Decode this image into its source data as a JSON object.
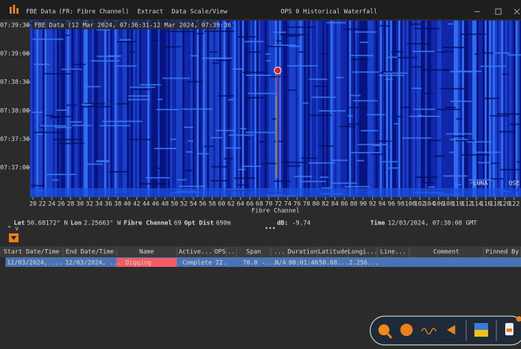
{
  "title_bar": {
    "menu": [
      {
        "label": "FBE Data",
        "hint": "(FR: Fibre Channel)"
      },
      {
        "label": "Extract"
      },
      {
        "label": "Data Scale/View"
      }
    ],
    "window_title": "OPS 0 Historical Waterfall"
  },
  "waterfall": {
    "overlay_label": "FBE Data (12 Mar 2024, 07:36:31-12 Mar 2024, 07:39:36",
    "y_labels": [
      "07:39:30",
      "07:39:00",
      "07:38:30",
      "07:38:00",
      "07:37:30",
      "07:37:00"
    ],
    "x_ticks": [
      20,
      22,
      24,
      26,
      28,
      30,
      32,
      34,
      36,
      38,
      40,
      42,
      44,
      46,
      48,
      50,
      52,
      54,
      56,
      58,
      60,
      62,
      64,
      66,
      68,
      70,
      72,
      74,
      76,
      78,
      80,
      82,
      84,
      86,
      88,
      90,
      92,
      94,
      96,
      98,
      100,
      102,
      104,
      106,
      108,
      110,
      112,
      114,
      116,
      118,
      120,
      122
    ],
    "x_title": "Fibre Channel",
    "logo": "LUNA",
    "logo2": "OSE"
  },
  "status": {
    "lat_label": "Lat",
    "lat": "50.68172° N",
    "lon_label": "Lon",
    "lon": "2.25663° W",
    "fc_label": "Fibre Channel",
    "fc": "69",
    "dist_label": "Opt Dist",
    "dist": "690m",
    "db_label": "dB:",
    "db": "-9.74",
    "time_label": "Time",
    "time": "12/03/2024, 07:38:08 GMT"
  },
  "table": {
    "headers": [
      "Start Date/Time",
      "End Date/Time",
      "Name",
      "Active...",
      "OPS",
      "..",
      "Span",
      "...",
      "Duration",
      "Latitude",
      "Longi...",
      "Line...",
      "Comment",
      "Pinned By"
    ],
    "rows": [
      [
        "12/03/2024, ...",
        "12/03/2024, ...",
        "Digging",
        "Complete ...",
        "72",
        "70.0 -...",
        "N/A",
        "00:01:46",
        "50.68...",
        "2.256..."
      ]
    ]
  }
}
